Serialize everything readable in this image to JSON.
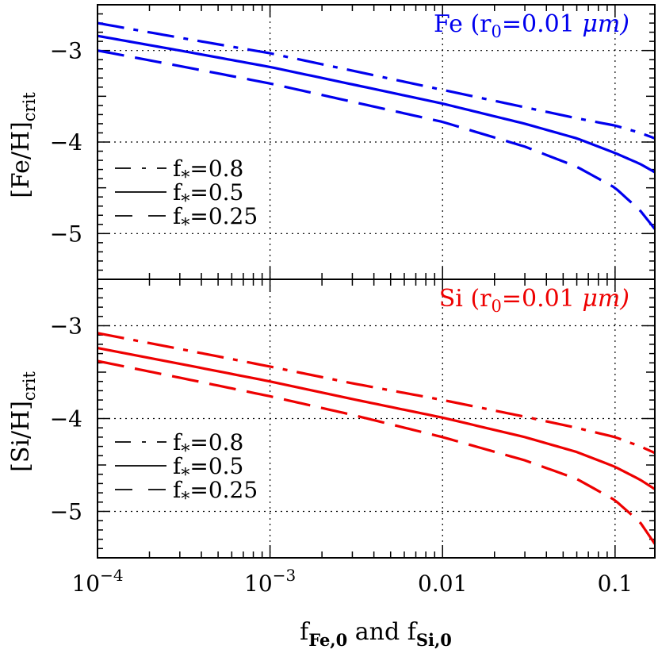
{
  "chart_data": [
    {
      "type": "line",
      "panel": "top",
      "title": "Fe (r0=0.01 μm)",
      "title_parts": {
        "element": "Fe",
        "open": "(r",
        "sub": "0",
        "rest": "=0.01",
        "unit": "μm)"
      },
      "title_color": "#0000ee",
      "ylabel": {
        "main": "[Fe/H]",
        "sub": "crit"
      },
      "xscale": "log",
      "xlim": [
        0.0001,
        0.17
      ],
      "ylim": [
        -5.5,
        -2.5
      ],
      "yticks": [
        -3,
        -4,
        -5
      ],
      "ytick_labels": [
        "−3",
        "−4",
        "−5"
      ],
      "grid": "dotted",
      "legend_placement": "lower-left",
      "series": [
        {
          "name": "f*=0.8",
          "name_main": "f",
          "name_sub": "*",
          "name_rest": "=0.8",
          "style": "dashdot",
          "color": "#0000ee",
          "x": [
            0.0001,
            0.0003,
            0.001,
            0.003,
            0.01,
            0.03,
            0.06,
            0.1,
            0.14,
            0.17
          ],
          "y": [
            -2.7,
            -2.86,
            -3.03,
            -3.22,
            -3.43,
            -3.62,
            -3.74,
            -3.82,
            -3.9,
            -3.96
          ]
        },
        {
          "name": "f*=0.5",
          "name_main": "f",
          "name_sub": "*",
          "name_rest": "=0.5",
          "style": "solid",
          "color": "#0000ee",
          "x": [
            0.0001,
            0.0003,
            0.001,
            0.003,
            0.01,
            0.03,
            0.06,
            0.1,
            0.14,
            0.17
          ],
          "y": [
            -2.84,
            -3.0,
            -3.18,
            -3.37,
            -3.58,
            -3.8,
            -3.96,
            -4.12,
            -4.24,
            -4.33
          ]
        },
        {
          "name": "f*=0.25",
          "name_main": "f",
          "name_sub": "*",
          "name_rest": "=0.25",
          "style": "dashed",
          "color": "#0000ee",
          "x": [
            0.0001,
            0.0003,
            0.001,
            0.003,
            0.01,
            0.03,
            0.06,
            0.1,
            0.14,
            0.17
          ],
          "y": [
            -3.0,
            -3.17,
            -3.36,
            -3.56,
            -3.78,
            -4.05,
            -4.27,
            -4.5,
            -4.75,
            -4.95
          ]
        }
      ]
    },
    {
      "type": "line",
      "panel": "bottom",
      "title": "Si (r0=0.01 μm)",
      "title_parts": {
        "element": "Si",
        "open": "(r",
        "sub": "0",
        "rest": "=0.01",
        "unit": "μm)"
      },
      "title_color": "#ee0000",
      "ylabel": {
        "main": "[Si/H]",
        "sub": "crit"
      },
      "xlabel": {
        "f1": "f",
        "s1": "Fe,0",
        "mid": "and",
        "f2": "f",
        "s2": "Si,0"
      },
      "xscale": "log",
      "xlim": [
        0.0001,
        0.17
      ],
      "ylim": [
        -5.5,
        -2.5
      ],
      "xticks": [
        0.0001,
        0.001,
        0.01,
        0.1
      ],
      "xtick_labels": [
        {
          "base": "10",
          "exp": "−4"
        },
        {
          "base": "10",
          "exp": "−3"
        },
        {
          "base": "0.01",
          "exp": ""
        },
        {
          "base": "0.1",
          "exp": ""
        }
      ],
      "yticks": [
        -3,
        -4,
        -5
      ],
      "ytick_labels": [
        "−3",
        "−4",
        "−5"
      ],
      "grid": "dotted",
      "legend_placement": "lower-left",
      "series": [
        {
          "name": "f*=0.8",
          "name_main": "f",
          "name_sub": "*",
          "name_rest": "=0.8",
          "style": "dashdot",
          "color": "#ee0000",
          "x": [
            0.0001,
            0.0003,
            0.001,
            0.003,
            0.01,
            0.03,
            0.06,
            0.1,
            0.14,
            0.17
          ],
          "y": [
            -3.08,
            -3.25,
            -3.44,
            -3.62,
            -3.8,
            -3.98,
            -4.1,
            -4.2,
            -4.3,
            -4.37
          ]
        },
        {
          "name": "f*=0.5",
          "name_main": "f",
          "name_sub": "*",
          "name_rest": "=0.5",
          "style": "solid",
          "color": "#ee0000",
          "x": [
            0.0001,
            0.0003,
            0.001,
            0.003,
            0.01,
            0.03,
            0.06,
            0.1,
            0.14,
            0.17
          ],
          "y": [
            -3.24,
            -3.41,
            -3.6,
            -3.79,
            -3.99,
            -4.2,
            -4.36,
            -4.52,
            -4.66,
            -4.76
          ]
        },
        {
          "name": "f*=0.25",
          "name_main": "f",
          "name_sub": "*",
          "name_rest": "=0.25",
          "style": "dashed",
          "color": "#ee0000",
          "x": [
            0.0001,
            0.0003,
            0.001,
            0.003,
            0.01,
            0.03,
            0.06,
            0.1,
            0.14,
            0.17
          ],
          "y": [
            -3.38,
            -3.56,
            -3.76,
            -3.96,
            -4.2,
            -4.45,
            -4.65,
            -4.88,
            -5.12,
            -5.35
          ]
        }
      ]
    }
  ]
}
